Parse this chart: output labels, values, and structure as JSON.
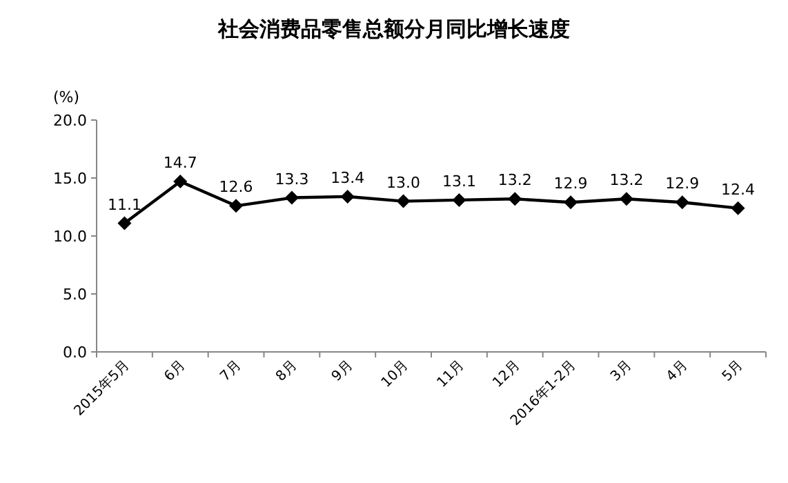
{
  "chart_data": {
    "type": "line",
    "title": "社会消费品零售总额分月同比增长速度",
    "ylabel": "(%)",
    "categories": [
      "2015年5月",
      "6月",
      "7月",
      "8月",
      "9月",
      "10月",
      "11月",
      "12月",
      "2016年1-2月",
      "3月",
      "4月",
      "5月"
    ],
    "series": [
      {
        "color": "#000000",
        "values": [
          11.1,
          14.7,
          12.6,
          13.3,
          13.4,
          13.0,
          13.1,
          13.2,
          12.9,
          13.2,
          12.9,
          12.4
        ],
        "value_labels": [
          "11.1",
          "14.7",
          "12.6",
          "13.3",
          "13.4",
          "13.0",
          "13.1",
          "13.2",
          "12.9",
          "13.2",
          "12.9",
          "12.4"
        ]
      }
    ],
    "ylim": [
      0,
      20
    ],
    "yticks": [
      {
        "value": 0,
        "label": "0.0"
      },
      {
        "value": 5,
        "label": "5.0"
      },
      {
        "value": 10,
        "label": "10.0"
      },
      {
        "value": 15,
        "label": "15.0"
      },
      {
        "value": 20,
        "label": "20.0"
      }
    ],
    "marker": "diamond",
    "line_style": "solid",
    "grid": false
  }
}
